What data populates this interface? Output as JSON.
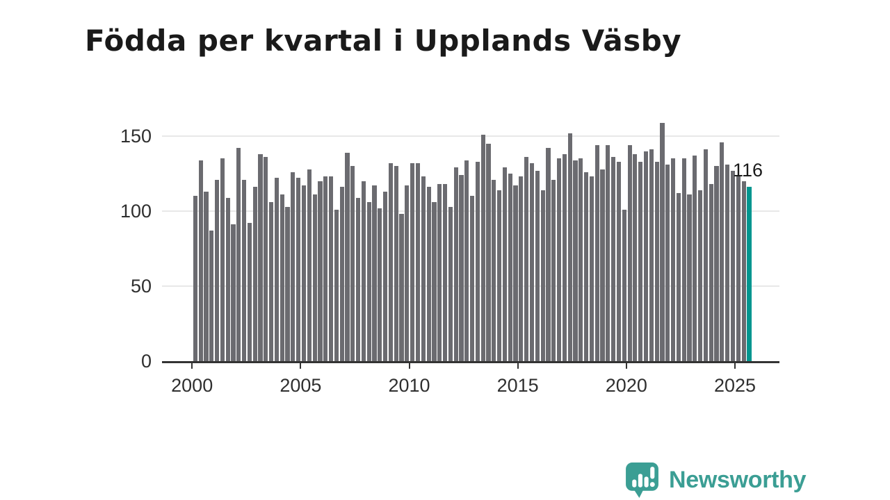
{
  "title": "Födda per kvartal i Upplands Väsby",
  "chart_data": {
    "type": "bar",
    "title": "Födda per kvartal i Upplands Väsby",
    "x_unit": "quarter",
    "period_start": "2000-Q1",
    "period_end": "2025-Q3",
    "x_tick_labels": [
      "2000",
      "2005",
      "2010",
      "2015",
      "2020",
      "2025"
    ],
    "y_tick_labels": [
      "0",
      "50",
      "100",
      "150"
    ],
    "ylim": [
      0,
      165
    ],
    "grid": "horizontal",
    "legend": "none",
    "values": [
      110,
      134,
      113,
      87,
      121,
      135,
      109,
      91,
      142,
      121,
      92,
      116,
      138,
      136,
      106,
      122,
      111,
      103,
      126,
      122,
      117,
      128,
      111,
      120,
      123,
      123,
      101,
      116,
      139,
      130,
      109,
      120,
      106,
      117,
      102,
      113,
      132,
      130,
      98,
      117,
      132,
      132,
      123,
      116,
      106,
      118,
      118,
      103,
      129,
      124,
      134,
      110,
      133,
      151,
      145,
      121,
      114,
      129,
      125,
      117,
      123,
      136,
      132,
      127,
      114,
      142,
      121,
      135,
      138,
      152,
      134,
      135,
      126,
      123,
      144,
      128,
      144,
      136,
      133,
      101,
      144,
      138,
      133,
      140,
      141,
      133,
      159,
      131,
      135,
      112,
      135,
      111,
      137,
      114,
      141,
      118,
      130,
      146,
      131,
      127,
      124,
      120,
      116
    ],
    "highlight_index": 102,
    "annotation": {
      "text": "116",
      "value": 116
    }
  },
  "colors": {
    "bar": "#6b6b70",
    "highlight": "#00968f",
    "axis": "#333333",
    "grid": "#e8e8e8",
    "title_text": "#1a1a1a",
    "tick_text": "#2f2f2f",
    "logo": "#3b9e94"
  },
  "logo": {
    "name": "Newsworthy"
  }
}
